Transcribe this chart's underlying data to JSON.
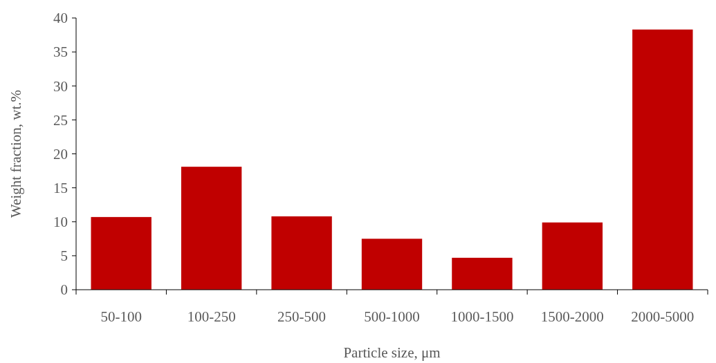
{
  "chart_data": {
    "type": "bar",
    "xlabel": "Particle size, μm",
    "ylabel": "Weight fraction, wt.%",
    "categories": [
      "50-100",
      "100-250",
      "250-500",
      "500-1000",
      "1000-1500",
      "1500-2000",
      "2000-5000"
    ],
    "values": [
      10.7,
      18.1,
      10.8,
      7.5,
      4.7,
      9.9,
      38.3
    ],
    "color": "#c00000",
    "ylim": [
      0,
      40
    ],
    "yticks": [
      0,
      5,
      10,
      15,
      20,
      25,
      30,
      35,
      40
    ],
    "grid": false
  }
}
